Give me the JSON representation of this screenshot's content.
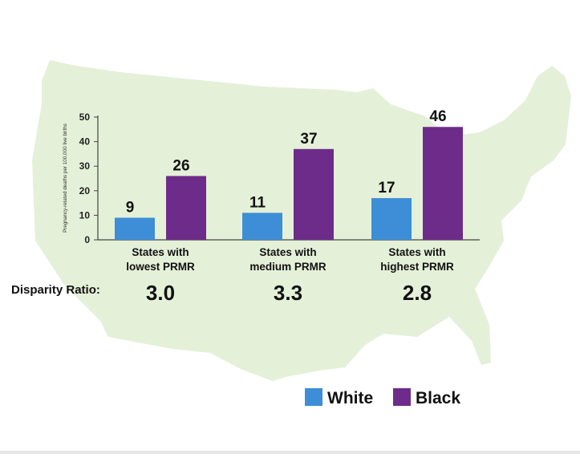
{
  "chart_data": {
    "type": "bar",
    "ylabel": "Pregnancy-related deaths per 100,000 live births",
    "ylim": [
      0,
      50
    ],
    "yticks": [
      0,
      10,
      20,
      30,
      40,
      50
    ],
    "categories": [
      {
        "line1": "States with",
        "line2": "lowest PRMR"
      },
      {
        "line1": "States with",
        "line2": "medium PRMR"
      },
      {
        "line1": "States with",
        "line2": "highest PRMR"
      }
    ],
    "series": [
      {
        "name": "White",
        "color": "#3d8ed6",
        "values": [
          9,
          11,
          17
        ]
      },
      {
        "name": "Black",
        "color": "#6e2c8a",
        "values": [
          26,
          37,
          46
        ]
      }
    ],
    "disparity_label": "Disparity Ratio:",
    "disparity_ratios": [
      "3.0",
      "3.3",
      "2.8"
    ],
    "legend": {
      "position": "bottom-right"
    },
    "background_color": "#e4f0d8"
  }
}
